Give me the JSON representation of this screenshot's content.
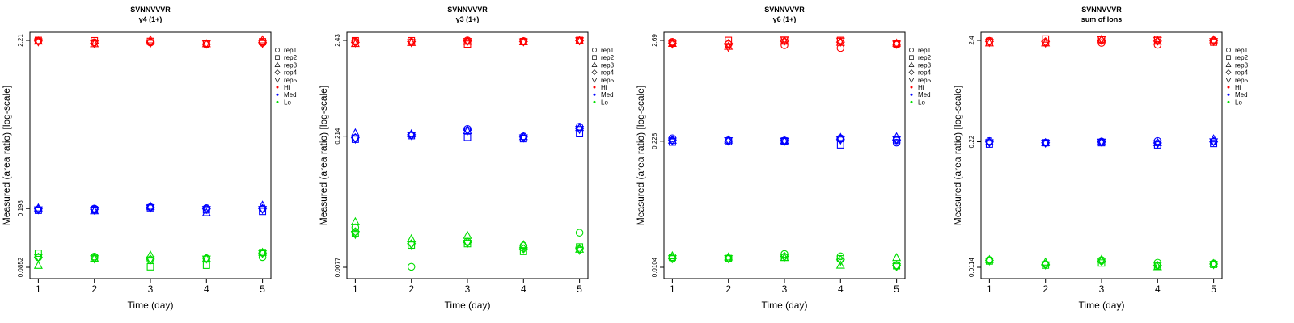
{
  "colors": {
    "Hi": "#ff0000",
    "Med": "#0000ff",
    "Lo": "#00dd00",
    "axis": "#000000"
  },
  "legend": {
    "placement": "right",
    "shape_entries": [
      {
        "label": "rep1",
        "marker": "circle"
      },
      {
        "label": "rep2",
        "marker": "square"
      },
      {
        "label": "rep3",
        "marker": "triangle-up"
      },
      {
        "label": "rep4",
        "marker": "diamond"
      },
      {
        "label": "rep5",
        "marker": "triangle-down"
      }
    ],
    "color_entries": [
      {
        "label": "Hi",
        "color": "#ff0000"
      },
      {
        "label": "Med",
        "color": "#0000ff"
      },
      {
        "label": "Lo",
        "color": "#00dd00"
      }
    ]
  },
  "chart_data": [
    {
      "type": "scatter",
      "title": "SVNNVVVR",
      "subtitle": "y4 (1+)",
      "xlabel": "Time (day)",
      "ylabel": "Measured (area ratio) [log-scale]",
      "yscale": "log",
      "x": [
        1,
        2,
        3,
        4,
        5
      ],
      "ylim": [
        0.0852,
        2.21
      ],
      "yticks": [
        "0.0852",
        "0.198",
        "2.21"
      ],
      "grid": false,
      "series": [
        {
          "name": "Hi",
          "color": "#ff0000",
          "reps": [
            {
              "name": "rep1",
              "values": [
                2.2,
                2.15,
                2.14,
                2.08,
                2.13
              ]
            },
            {
              "name": "rep2",
              "values": [
                2.21,
                2.2,
                2.18,
                2.12,
                2.17
              ]
            },
            {
              "name": "rep3",
              "values": [
                2.18,
                2.1,
                2.22,
                2.1,
                2.22
              ]
            },
            {
              "name": "rep4",
              "values": [
                2.19,
                2.12,
                2.16,
                2.09,
                2.15
              ]
            },
            {
              "name": "rep5",
              "values": [
                2.17,
                2.11,
                2.13,
                2.11,
                2.12
              ]
            }
          ]
        },
        {
          "name": "Med",
          "color": "#0000ff",
          "reps": [
            {
              "name": "rep1",
              "values": [
                0.196,
                0.198,
                0.202,
                0.199,
                0.197
              ]
            },
            {
              "name": "rep2",
              "values": [
                0.193,
                0.195,
                0.2,
                0.194,
                0.19
              ]
            },
            {
              "name": "rep3",
              "values": [
                0.199,
                0.191,
                0.204,
                0.186,
                0.207
              ]
            },
            {
              "name": "rep4",
              "values": [
                0.197,
                0.196,
                0.201,
                0.197,
                0.198
              ]
            },
            {
              "name": "rep5",
              "values": [
                0.195,
                0.194,
                0.2,
                0.196,
                0.196
              ]
            }
          ]
        },
        {
          "name": "Lo",
          "color": "#00dd00",
          "reps": [
            {
              "name": "rep1",
              "values": [
                0.0982,
                0.0993,
                0.0941,
                0.0968,
                0.0985
              ]
            },
            {
              "name": "rep2",
              "values": [
                0.1043,
                0.0972,
                0.0858,
                0.0877,
                0.1053
              ]
            },
            {
              "name": "rep3",
              "values": [
                0.0873,
                0.0969,
                0.1012,
                0.0964,
                0.1053
              ]
            },
            {
              "name": "rep4",
              "values": [
                0.0985,
                0.0974,
                0.0956,
                0.0971,
                0.1046
              ]
            },
            {
              "name": "rep5",
              "values": [
                0.0983,
                0.0965,
                0.095,
                0.0962,
                0.104
              ]
            }
          ]
        }
      ]
    },
    {
      "type": "scatter",
      "title": "SVNNVVVR",
      "subtitle": "y3 (1+)",
      "xlabel": "Time (day)",
      "ylabel": "Measured (area ratio) [log-scale]",
      "yscale": "log",
      "x": [
        1,
        2,
        3,
        4,
        5
      ],
      "ylim": [
        0.0077,
        2.43
      ],
      "yticks": [
        "0.0077",
        "0.214",
        "2.43"
      ],
      "grid": false,
      "series": [
        {
          "name": "Hi",
          "color": "#ff0000",
          "reps": [
            {
              "name": "rep1",
              "values": [
                2.36,
                2.33,
                2.43,
                2.39,
                2.43
              ]
            },
            {
              "name": "rep2",
              "values": [
                2.41,
                2.41,
                2.21,
                2.36,
                2.43
              ]
            },
            {
              "name": "rep3",
              "values": [
                2.23,
                2.29,
                2.36,
                2.33,
                2.39
              ]
            },
            {
              "name": "rep4",
              "values": [
                2.31,
                2.36,
                2.39,
                2.36,
                2.41
              ]
            },
            {
              "name": "rep5",
              "values": [
                2.29,
                2.31,
                2.38,
                2.35,
                2.42
              ]
            }
          ]
        },
        {
          "name": "Med",
          "color": "#0000ff",
          "reps": [
            {
              "name": "rep1",
              "values": [
                0.205,
                0.221,
                0.257,
                0.213,
                0.272
              ]
            },
            {
              "name": "rep2",
              "values": [
                0.198,
                0.217,
                0.208,
                0.201,
                0.228
              ]
            },
            {
              "name": "rep3",
              "values": [
                0.231,
                0.226,
                0.245,
                0.211,
                0.265
              ]
            },
            {
              "name": "rep4",
              "values": [
                0.206,
                0.222,
                0.25,
                0.209,
                0.26
              ]
            },
            {
              "name": "rep5",
              "values": [
                0.2,
                0.219,
                0.246,
                0.206,
                0.255
              ]
            }
          ]
        },
        {
          "name": "Lo",
          "color": "#00dd00",
          "reps": [
            {
              "name": "rep1",
              "values": [
                0.0212,
                0.0078,
                0.0148,
                0.0133,
                0.0185
              ]
            },
            {
              "name": "rep2",
              "values": [
                0.0183,
                0.0135,
                0.014,
                0.0115,
                0.0129
              ]
            },
            {
              "name": "rep3",
              "values": [
                0.0243,
                0.0158,
                0.0172,
                0.0136,
                0.0121
              ]
            },
            {
              "name": "rep4",
              "values": [
                0.019,
                0.014,
                0.0145,
                0.0123,
                0.0124
              ]
            },
            {
              "name": "rep5",
              "values": [
                0.0178,
                0.0137,
                0.0142,
                0.0126,
                0.0119
              ]
            }
          ]
        }
      ]
    },
    {
      "type": "scatter",
      "title": "SVNNVVVR",
      "subtitle": "y6 (1+)",
      "xlabel": "Time (day)",
      "ylabel": "Measured (area ratio) [log-scale]",
      "yscale": "log",
      "x": [
        1,
        2,
        3,
        4,
        5
      ],
      "ylim": [
        0.0104,
        2.69
      ],
      "yticks": [
        "0.0104",
        "0.228",
        "2.69"
      ],
      "grid": false,
      "series": [
        {
          "name": "Hi",
          "color": "#ff0000",
          "reps": [
            {
              "name": "rep1",
              "values": [
                2.6,
                2.45,
                2.39,
                2.23,
                2.42
              ]
            },
            {
              "name": "rep2",
              "values": [
                2.55,
                2.69,
                2.69,
                2.69,
                2.48
              ]
            },
            {
              "name": "rep3",
              "values": [
                2.48,
                2.31,
                2.62,
                2.55,
                2.5
              ]
            },
            {
              "name": "rep4",
              "values": [
                2.52,
                2.5,
                2.64,
                2.58,
                2.44
              ]
            },
            {
              "name": "rep5",
              "values": [
                2.47,
                2.27,
                2.73,
                2.65,
                2.47
              ]
            }
          ]
        },
        {
          "name": "Med",
          "color": "#0000ff",
          "reps": [
            {
              "name": "rep1",
              "values": [
                0.245,
                0.233,
                0.232,
                0.245,
                0.22
              ]
            },
            {
              "name": "rep2",
              "values": [
                0.223,
                0.227,
                0.229,
                0.208,
                0.232
              ]
            },
            {
              "name": "rep3",
              "values": [
                0.232,
                0.233,
                0.23,
                0.248,
                0.252
              ]
            },
            {
              "name": "rep4",
              "values": [
                0.235,
                0.228,
                0.231,
                0.24,
                0.235
              ]
            },
            {
              "name": "rep5",
              "values": [
                0.23,
                0.232,
                0.228,
                0.236,
                0.238
              ]
            }
          ]
        },
        {
          "name": "Lo",
          "color": "#00dd00",
          "reps": [
            {
              "name": "rep1",
              "values": [
                0.0128,
                0.0129,
                0.0144,
                0.0136,
                0.0109
              ]
            },
            {
              "name": "rep2",
              "values": [
                0.0133,
                0.0129,
                0.0133,
                0.0128,
                0.0108
              ]
            },
            {
              "name": "rep3",
              "values": [
                0.0137,
                0.0133,
                0.0131,
                0.0109,
                0.0131
              ]
            },
            {
              "name": "rep4",
              "values": [
                0.0131,
                0.0131,
                0.0136,
                0.0125,
                0.0109
              ]
            },
            {
              "name": "rep5",
              "values": [
                0.0129,
                0.0129,
                0.0134,
                0.0121,
                0.0106
              ]
            }
          ]
        }
      ]
    },
    {
      "type": "scatter",
      "title": "SVNNVVVR",
      "subtitle": "sum of Ions",
      "xlabel": "Time (day)",
      "ylabel": "Measured (area ratio) [log-scale]",
      "yscale": "log",
      "x": [
        1,
        2,
        3,
        4,
        5
      ],
      "ylim": [
        0.0114,
        2.4
      ],
      "yticks": [
        "0.0114",
        "0.22",
        "2.4"
      ],
      "grid": false,
      "series": [
        {
          "name": "Hi",
          "color": "#ff0000",
          "reps": [
            {
              "name": "rep1",
              "values": [
                2.38,
                2.27,
                2.26,
                2.16,
                2.4
              ]
            },
            {
              "name": "rep2",
              "values": [
                2.35,
                2.48,
                2.43,
                2.45,
                2.3
              ]
            },
            {
              "name": "rep3",
              "values": [
                2.25,
                2.25,
                2.46,
                2.34,
                2.42
              ]
            },
            {
              "name": "rep4",
              "values": [
                2.34,
                2.33,
                2.39,
                2.36,
                2.37
              ]
            },
            {
              "name": "rep5",
              "values": [
                2.3,
                2.26,
                2.46,
                2.41,
                2.35
              ]
            }
          ]
        },
        {
          "name": "Med",
          "color": "#0000ff",
          "reps": [
            {
              "name": "rep1",
              "values": [
                0.224,
                0.215,
                0.221,
                0.224,
                0.221
              ]
            },
            {
              "name": "rep2",
              "values": [
                0.208,
                0.215,
                0.215,
                0.204,
                0.211
              ]
            },
            {
              "name": "rep3",
              "values": [
                0.218,
                0.214,
                0.218,
                0.214,
                0.234
              ]
            },
            {
              "name": "rep4",
              "values": [
                0.219,
                0.215,
                0.219,
                0.214,
                0.222
              ]
            },
            {
              "name": "rep5",
              "values": [
                0.216,
                0.214,
                0.219,
                0.211,
                0.221
              ]
            }
          ]
        },
        {
          "name": "Lo",
          "color": "#00dd00",
          "reps": [
            {
              "name": "rep1",
              "values": [
                0.0135,
                0.0123,
                0.0135,
                0.0127,
                0.0125
              ]
            },
            {
              "name": "rep2",
              "values": [
                0.0132,
                0.012,
                0.0126,
                0.0118,
                0.0122
              ]
            },
            {
              "name": "rep3",
              "values": [
                0.0136,
                0.0128,
                0.0137,
                0.0115,
                0.0124
              ]
            },
            {
              "name": "rep4",
              "values": [
                0.0134,
                0.0122,
                0.0131,
                0.0119,
                0.0123
              ]
            },
            {
              "name": "rep5",
              "values": [
                0.0133,
                0.0121,
                0.0133,
                0.012,
                0.0122
              ]
            }
          ]
        }
      ]
    }
  ]
}
